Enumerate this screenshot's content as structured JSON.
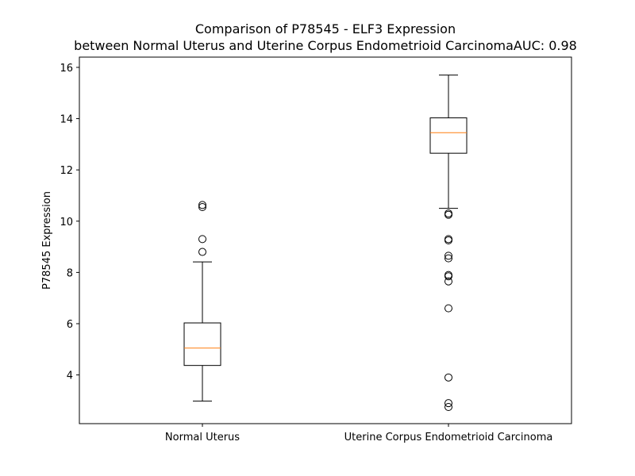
{
  "chart_data": {
    "type": "box",
    "title_line1": "Comparison of P78545 - ELF3 Expression",
    "title_line2": "between Normal Uterus and Uterine Corpus Endometrioid CarcinomaAUC: 0.98",
    "xlabel": "",
    "ylabel": "P78545 Expression",
    "ylim": [
      2.1,
      16.4
    ],
    "yticks": [
      4,
      6,
      8,
      10,
      12,
      14,
      16
    ],
    "grid": false,
    "categories": [
      "Normal Uterus",
      "Uterine Corpus Endometrioid Carcinoma"
    ],
    "boxes": [
      {
        "category": "Normal Uterus",
        "whisker_low": 2.98,
        "q1": 4.37,
        "median": 5.05,
        "q3": 6.03,
        "whisker_high": 8.41,
        "outliers": [
          8.8,
          9.3,
          10.55,
          10.63
        ]
      },
      {
        "category": "Uterine Corpus Endometrioid Carcinoma",
        "whisker_low": 10.5,
        "q1": 12.65,
        "median": 13.45,
        "q3": 14.03,
        "whisker_high": 15.7,
        "outliers": [
          10.3,
          10.25,
          9.3,
          9.25,
          8.65,
          8.55,
          7.9,
          7.85,
          7.65,
          6.6,
          3.9,
          2.9,
          2.75
        ]
      }
    ],
    "colors": {
      "box": "#000000",
      "median": "#ff7f0e",
      "flier": "#000000"
    }
  }
}
